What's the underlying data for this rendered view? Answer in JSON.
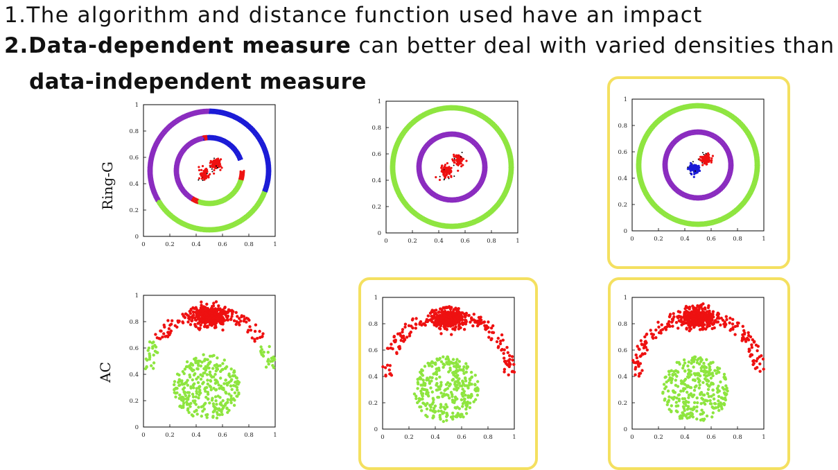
{
  "points": {
    "p1_prefix": "1.",
    "p1_text": "The algorithm and distance function used have an impact",
    "p2_prefix": "2.",
    "p2_bold": "Data-dependent measure",
    "p2_text": " can better deal with varied densities than",
    "p2_cont_bold": "data-independent measure"
  },
  "row_labels": [
    "Ring-G",
    "AC"
  ],
  "colors": {
    "highlight": "#f4e060",
    "green": "#8ee53f",
    "purple": "#8a2bbf",
    "blue": "#1a1ad6",
    "red": "#ee1111",
    "black": "#000000"
  },
  "chart_data": [
    {
      "type": "scatter",
      "dataset": "Ring-G",
      "highlighted": false,
      "xlim": [
        0,
        1
      ],
      "ylim": [
        0,
        1
      ],
      "xticks": [
        "0",
        "0.2",
        "0.4",
        "0.6",
        "0.8",
        "1"
      ],
      "yticks": [
        "0",
        "0.2",
        "0.4",
        "0.6",
        "0.8",
        "1"
      ],
      "clusters": [
        {
          "shape": "ring",
          "cx": 0.5,
          "cy": 0.5,
          "r": 0.45,
          "color": "green",
          "from": 210,
          "to": 340
        },
        {
          "shape": "ring",
          "cx": 0.5,
          "cy": 0.5,
          "r": 0.45,
          "color": "purple",
          "from": 90,
          "to": 210
        },
        {
          "shape": "ring",
          "cx": 0.5,
          "cy": 0.5,
          "r": 0.45,
          "color": "blue",
          "from": -20,
          "to": 90
        },
        {
          "shape": "ring",
          "cx": 0.5,
          "cy": 0.5,
          "r": 0.25,
          "color": "purple",
          "from": 100,
          "to": 240
        },
        {
          "shape": "ring",
          "cx": 0.5,
          "cy": 0.5,
          "r": 0.25,
          "color": "blue",
          "from": 20,
          "to": 100
        },
        {
          "shape": "ring",
          "cx": 0.5,
          "cy": 0.5,
          "r": 0.25,
          "color": "green",
          "from": 250,
          "to": 345
        },
        {
          "shape": "ring",
          "cx": 0.5,
          "cy": 0.5,
          "r": 0.25,
          "color": "red",
          "from": 345,
          "to": 360
        },
        {
          "shape": "ring",
          "cx": 0.5,
          "cy": 0.5,
          "r": 0.25,
          "color": "red",
          "from": 240,
          "to": 250
        },
        {
          "shape": "ring",
          "cx": 0.5,
          "cy": 0.5,
          "r": 0.25,
          "color": "red",
          "from": 95,
          "to": 100
        },
        {
          "shape": "blob",
          "cx": 0.46,
          "cy": 0.47,
          "r": 0.035,
          "color": "red",
          "n": 90
        },
        {
          "shape": "blob",
          "cx": 0.55,
          "cy": 0.55,
          "r": 0.035,
          "color": "red",
          "n": 90
        }
      ]
    },
    {
      "type": "scatter",
      "dataset": "Ring-G",
      "highlighted": false,
      "xlim": [
        0,
        1
      ],
      "ylim": [
        0,
        1
      ],
      "xticks": [
        "0",
        "0.2",
        "0.4",
        "0.6",
        "0.8",
        "1"
      ],
      "yticks": [
        "0",
        "0.2",
        "0.4",
        "0.6",
        "0.8",
        "1"
      ],
      "clusters": [
        {
          "shape": "ring",
          "cx": 0.5,
          "cy": 0.5,
          "r": 0.45,
          "color": "green",
          "from": 0,
          "to": 360
        },
        {
          "shape": "ring",
          "cx": 0.5,
          "cy": 0.5,
          "r": 0.25,
          "color": "purple",
          "from": 0,
          "to": 360
        },
        {
          "shape": "blob",
          "cx": 0.46,
          "cy": 0.47,
          "r": 0.035,
          "color": "red",
          "n": 90
        },
        {
          "shape": "blob",
          "cx": 0.55,
          "cy": 0.55,
          "r": 0.035,
          "color": "red",
          "n": 90
        }
      ]
    },
    {
      "type": "scatter",
      "dataset": "Ring-G",
      "highlighted": true,
      "xlim": [
        0,
        1
      ],
      "ylim": [
        0,
        1
      ],
      "xticks": [
        "0",
        "0.2",
        "0.4",
        "0.6",
        "0.8",
        "1"
      ],
      "yticks": [
        "0",
        "0.2",
        "0.4",
        "0.6",
        "0.8",
        "1"
      ],
      "clusters": [
        {
          "shape": "ring",
          "cx": 0.5,
          "cy": 0.5,
          "r": 0.45,
          "color": "green",
          "from": 0,
          "to": 360
        },
        {
          "shape": "ring",
          "cx": 0.5,
          "cy": 0.5,
          "r": 0.25,
          "color": "purple",
          "from": 0,
          "to": 360
        },
        {
          "shape": "blob",
          "cx": 0.47,
          "cy": 0.47,
          "r": 0.035,
          "color": "blue",
          "n": 110
        },
        {
          "shape": "blob",
          "cx": 0.56,
          "cy": 0.55,
          "r": 0.035,
          "color": "red",
          "n": 90
        }
      ]
    },
    {
      "type": "scatter",
      "dataset": "AC",
      "highlighted": false,
      "xlim": [
        0,
        1
      ],
      "ylim": [
        0,
        1
      ],
      "xticks": [
        "0",
        "0.2",
        "0.4",
        "0.6",
        "0.8",
        "1"
      ],
      "yticks": [
        "0",
        "0.2",
        "0.4",
        "0.6",
        "0.8",
        "1"
      ],
      "clusters": [
        {
          "shape": "blob",
          "cx": 0.5,
          "cy": 0.84,
          "r": 0.12,
          "color": "red",
          "n": 320,
          "ry": 0.07
        },
        {
          "shape": "arc",
          "cx": 0.5,
          "cy": 0.4,
          "r": 0.47,
          "color": "red",
          "from": 35,
          "to": 145,
          "n": 130
        },
        {
          "shape": "arc",
          "cx": 0.5,
          "cy": 0.4,
          "r": 0.47,
          "color": "green",
          "from": 5,
          "to": 30,
          "n": 25
        },
        {
          "shape": "arc",
          "cx": 0.5,
          "cy": 0.4,
          "r": 0.47,
          "color": "green",
          "from": 150,
          "to": 175,
          "n": 25
        },
        {
          "shape": "disk",
          "cx": 0.48,
          "cy": 0.3,
          "r": 0.25,
          "color": "green",
          "n": 320
        }
      ]
    },
    {
      "type": "scatter",
      "dataset": "AC",
      "highlighted": true,
      "xlim": [
        0,
        1
      ],
      "ylim": [
        0,
        1
      ],
      "xticks": [
        "0",
        "0.2",
        "0.4",
        "0.6",
        "0.8",
        "1"
      ],
      "yticks": [
        "0",
        "0.2",
        "0.4",
        "0.6",
        "0.8",
        "1"
      ],
      "clusters": [
        {
          "shape": "blob",
          "cx": 0.5,
          "cy": 0.84,
          "r": 0.12,
          "color": "red",
          "n": 320,
          "ry": 0.07
        },
        {
          "shape": "arc",
          "cx": 0.5,
          "cy": 0.4,
          "r": 0.47,
          "color": "red",
          "from": 0,
          "to": 180,
          "n": 180
        },
        {
          "shape": "disk",
          "cx": 0.48,
          "cy": 0.3,
          "r": 0.25,
          "color": "green",
          "n": 320
        }
      ]
    },
    {
      "type": "scatter",
      "dataset": "AC",
      "highlighted": true,
      "xlim": [
        0,
        1
      ],
      "ylim": [
        0,
        1
      ],
      "xticks": [
        "0",
        "0.2",
        "0.4",
        "0.6",
        "0.8",
        "1"
      ],
      "yticks": [
        "0",
        "0.2",
        "0.4",
        "0.6",
        "0.8",
        "1"
      ],
      "clusters": [
        {
          "shape": "blob",
          "cx": 0.5,
          "cy": 0.84,
          "r": 0.12,
          "color": "red",
          "n": 320,
          "ry": 0.07
        },
        {
          "shape": "arc",
          "cx": 0.5,
          "cy": 0.4,
          "r": 0.47,
          "color": "red",
          "from": 0,
          "to": 180,
          "n": 180
        },
        {
          "shape": "disk",
          "cx": 0.48,
          "cy": 0.3,
          "r": 0.25,
          "color": "green",
          "n": 320
        }
      ]
    }
  ]
}
